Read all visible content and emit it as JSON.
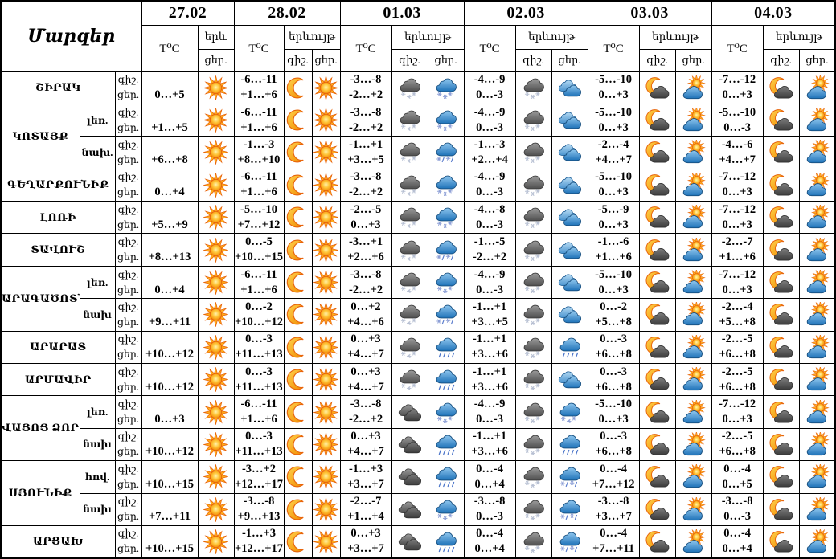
{
  "title": "Մարզեր",
  "labels": {
    "temp": "T⁰C",
    "phenomenon": "երևույթ",
    "phenomenon_short": "երև",
    "night": "գիշ.",
    "day": "ցեր."
  },
  "dates": [
    "27.02",
    "28.02",
    "01.03",
    "02.03",
    "03.03",
    "04.03"
  ],
  "icons": {
    "sun": "clear sunny day",
    "moon": "clear night",
    "dark-cloud": "overcast dark clouds",
    "dark-cloud-snow": "dark cloud with snowfall",
    "blue-cloud": "cloudy",
    "blue-cloud-snow": "cloud with snowfall",
    "blue-cloud-sleet": "cloud with sleet (snow and rain)",
    "blue-cloud-rain": "cloud with rain",
    "moon-cloud": "partly cloudy night",
    "sun-cloud": "partly cloudy day"
  },
  "colors": {
    "border": "#000000",
    "background": "#ffffff",
    "sun_orange": "#F59C18",
    "sun_outline": "#E8650C",
    "cloud_dark": "#5E5E5E",
    "cloud_blue": "#2E7FC0"
  },
  "regions": [
    {
      "name": "ՇԻՐԱԿ",
      "zones": [
        {
          "label": "",
          "cells": [
            {
              "tn": "",
              "td": "0…+5",
              "wn": "",
              "wd": "sun"
            },
            {
              "tn": "-6…-11",
              "td": "+1…+6",
              "wn": "moon",
              "wd": "sun"
            },
            {
              "tn": "-3…-8",
              "td": "-2…+2",
              "wn": "dark-cloud-snow",
              "wd": "blue-cloud-snow"
            },
            {
              "tn": "-4…-9",
              "td": "0…-3",
              "wn": "dark-cloud-snow",
              "wd": "blue-cloud"
            },
            {
              "tn": "-5…-10",
              "td": "0…+3",
              "wn": "moon-cloud",
              "wd": "sun-cloud"
            },
            {
              "tn": "-7…-12",
              "td": "0…+3",
              "wn": "moon-cloud",
              "wd": "sun-cloud"
            }
          ]
        }
      ]
    },
    {
      "name": "ԿՈՏԱՅՔ",
      "zones": [
        {
          "label": "լեռ.",
          "cells": [
            {
              "tn": "",
              "td": "+1…+5",
              "wn": "",
              "wd": "sun"
            },
            {
              "tn": "-6…-11",
              "td": "+1…+6",
              "wn": "moon",
              "wd": "sun"
            },
            {
              "tn": "-3…-8",
              "td": "-2…+2",
              "wn": "dark-cloud-snow",
              "wd": "blue-cloud-snow"
            },
            {
              "tn": "-4…-9",
              "td": "0…-3",
              "wn": "dark-cloud-snow",
              "wd": "blue-cloud"
            },
            {
              "tn": "-5…-10",
              "td": "0…+3",
              "wn": "moon-cloud",
              "wd": "sun-cloud"
            },
            {
              "tn": "-5…-10",
              "td": "0…-3",
              "wn": "moon-cloud",
              "wd": "sun-cloud"
            }
          ]
        },
        {
          "label": "նախ.",
          "cells": [
            {
              "tn": "",
              "td": "+6…+8",
              "wn": "",
              "wd": "sun"
            },
            {
              "tn": "-1…-3",
              "td": "+8…+10",
              "wn": "moon",
              "wd": "sun"
            },
            {
              "tn": "-1…+1",
              "td": "+3…+5",
              "wn": "dark-cloud-snow",
              "wd": "blue-cloud-sleet"
            },
            {
              "tn": "-1…-3",
              "td": "+2…+4",
              "wn": "dark-cloud-snow",
              "wd": "blue-cloud"
            },
            {
              "tn": "-2…-4",
              "td": "+4…+7",
              "wn": "moon-cloud",
              "wd": "sun-cloud"
            },
            {
              "tn": "-4…-6",
              "td": "+4…+7",
              "wn": "moon-cloud",
              "wd": "sun-cloud"
            }
          ]
        }
      ]
    },
    {
      "name": "ԳԵՂԱՐՔՈՒՆԻՔ",
      "zones": [
        {
          "label": "",
          "cells": [
            {
              "tn": "",
              "td": "0…+4",
              "wn": "",
              "wd": "sun"
            },
            {
              "tn": "-6…-11",
              "td": "+1…+6",
              "wn": "moon",
              "wd": "sun"
            },
            {
              "tn": "-3…-8",
              "td": "-2…+2",
              "wn": "dark-cloud-snow",
              "wd": "blue-cloud-snow"
            },
            {
              "tn": "-4…-9",
              "td": "0…-3",
              "wn": "dark-cloud-snow",
              "wd": "blue-cloud"
            },
            {
              "tn": "-5…-10",
              "td": "0…+3",
              "wn": "moon-cloud",
              "wd": "sun-cloud"
            },
            {
              "tn": "-7…-12",
              "td": "0…+3",
              "wn": "moon-cloud",
              "wd": "sun-cloud"
            }
          ]
        }
      ]
    },
    {
      "name": "ԼՈՌԻ",
      "zones": [
        {
          "label": "",
          "cells": [
            {
              "tn": "",
              "td": "+5…+9",
              "wn": "",
              "wd": "sun"
            },
            {
              "tn": "-5…-10",
              "td": "+7…+12",
              "wn": "moon",
              "wd": "sun"
            },
            {
              "tn": "-2…-5",
              "td": "0…+3",
              "wn": "dark-cloud-snow",
              "wd": "blue-cloud-snow"
            },
            {
              "tn": "-4…-8",
              "td": "0…-3",
              "wn": "dark-cloud-snow",
              "wd": "blue-cloud"
            },
            {
              "tn": "-5…-9",
              "td": "0…+3",
              "wn": "moon-cloud",
              "wd": "sun-cloud"
            },
            {
              "tn": "-7…-12",
              "td": "0…+3",
              "wn": "moon-cloud",
              "wd": "sun-cloud"
            }
          ]
        }
      ]
    },
    {
      "name": "ՏԱՎՈՒՇ",
      "zones": [
        {
          "label": "",
          "cells": [
            {
              "tn": "",
              "td": "+8…+13",
              "wn": "",
              "wd": "sun"
            },
            {
              "tn": "0…-5",
              "td": "+10…+15",
              "wn": "moon",
              "wd": "sun"
            },
            {
              "tn": "-3…+1",
              "td": "+2…+6",
              "wn": "dark-cloud-snow",
              "wd": "blue-cloud-sleet"
            },
            {
              "tn": "-1…-5",
              "td": "-2…+2",
              "wn": "dark-cloud-snow",
              "wd": "blue-cloud"
            },
            {
              "tn": "-1…-6",
              "td": "+1…+6",
              "wn": "moon-cloud",
              "wd": "sun-cloud"
            },
            {
              "tn": "-2…-7",
              "td": "+1…+6",
              "wn": "moon-cloud",
              "wd": "sun-cloud"
            }
          ]
        }
      ]
    },
    {
      "name": "ԱՐԱԳԱԾՈՏՆ",
      "zones": [
        {
          "label": "լեռ.",
          "cells": [
            {
              "tn": "",
              "td": "0…+4",
              "wn": "",
              "wd": "sun"
            },
            {
              "tn": "-6…-11",
              "td": "+1…+6",
              "wn": "moon",
              "wd": "sun"
            },
            {
              "tn": "-3…-8",
              "td": "-2…+2",
              "wn": "dark-cloud-snow",
              "wd": "blue-cloud-snow"
            },
            {
              "tn": "-4…-9",
              "td": "0…-3",
              "wn": "dark-cloud-snow",
              "wd": "blue-cloud"
            },
            {
              "tn": "-5…-10",
              "td": "0…+3",
              "wn": "moon-cloud",
              "wd": "sun-cloud"
            },
            {
              "tn": "-7…-12",
              "td": "0…+3",
              "wn": "moon-cloud",
              "wd": "sun-cloud"
            }
          ]
        },
        {
          "label": "նախ",
          "cells": [
            {
              "tn": "",
              "td": "+9…+11",
              "wn": "",
              "wd": "sun"
            },
            {
              "tn": "0…-2",
              "td": "+10…+12",
              "wn": "moon",
              "wd": "sun"
            },
            {
              "tn": "0…+2",
              "td": "+4…+6",
              "wn": "dark-cloud-snow",
              "wd": "blue-cloud-sleet"
            },
            {
              "tn": "-1…+1",
              "td": "+3…+5",
              "wn": "dark-cloud-snow",
              "wd": "blue-cloud"
            },
            {
              "tn": "0…-2",
              "td": "+5…+8",
              "wn": "moon-cloud",
              "wd": "sun-cloud"
            },
            {
              "tn": "-2…-4",
              "td": "+5…+8",
              "wn": "moon-cloud",
              "wd": "sun-cloud"
            }
          ]
        }
      ]
    },
    {
      "name": "ԱՐԱՐԱՏ",
      "zones": [
        {
          "label": "",
          "cells": [
            {
              "tn": "",
              "td": "+10…+12",
              "wn": "",
              "wd": "sun"
            },
            {
              "tn": "0…-3",
              "td": "+11…+13",
              "wn": "moon",
              "wd": "sun"
            },
            {
              "tn": "0…+3",
              "td": "+4…+7",
              "wn": "dark-cloud-snow",
              "wd": "blue-cloud-rain"
            },
            {
              "tn": "-1…+1",
              "td": "+3…+6",
              "wn": "dark-cloud-snow",
              "wd": "blue-cloud-rain"
            },
            {
              "tn": "0…-3",
              "td": "+6…+8",
              "wn": "moon-cloud",
              "wd": "sun-cloud"
            },
            {
              "tn": "-2…-5",
              "td": "+6…+8",
              "wn": "moon-cloud",
              "wd": "sun-cloud"
            }
          ]
        }
      ]
    },
    {
      "name": "ԱՐՄԱՎԻՐ",
      "zones": [
        {
          "label": "",
          "cells": [
            {
              "tn": "",
              "td": "+10…+12",
              "wn": "",
              "wd": "sun"
            },
            {
              "tn": "0…-3",
              "td": "+11…+13",
              "wn": "moon",
              "wd": "sun"
            },
            {
              "tn": "0…+3",
              "td": "+4…+7",
              "wn": "dark-cloud-snow",
              "wd": "blue-cloud-rain"
            },
            {
              "tn": "-1…+1",
              "td": "+3…+6",
              "wn": "dark-cloud-snow",
              "wd": "blue-cloud"
            },
            {
              "tn": "0…-3",
              "td": "+6…+8",
              "wn": "moon-cloud",
              "wd": "sun-cloud"
            },
            {
              "tn": "-2…-5",
              "td": "+6…+8",
              "wn": "moon-cloud",
              "wd": "sun-cloud"
            }
          ]
        }
      ]
    },
    {
      "name": "ՎԱՅՈՑ ՁՈՐ",
      "zones": [
        {
          "label": "լեռ.",
          "cells": [
            {
              "tn": "",
              "td": "0…+3",
              "wn": "",
              "wd": "sun"
            },
            {
              "tn": "-6…-11",
              "td": "+1…+6",
              "wn": "moon",
              "wd": "sun"
            },
            {
              "tn": "-3…-8",
              "td": "-2…+2",
              "wn": "dark-cloud",
              "wd": "blue-cloud-snow"
            },
            {
              "tn": "-4…-9",
              "td": "0…-3",
              "wn": "dark-cloud-snow",
              "wd": "blue-cloud-snow"
            },
            {
              "tn": "-5…-10",
              "td": "0…+3",
              "wn": "moon-cloud",
              "wd": "sun-cloud"
            },
            {
              "tn": "-7…-12",
              "td": "0…+3",
              "wn": "moon-cloud",
              "wd": "sun-cloud"
            }
          ]
        },
        {
          "label": "նախ",
          "cells": [
            {
              "tn": "",
              "td": "+10…+12",
              "wn": "",
              "wd": "sun"
            },
            {
              "tn": "0…-3",
              "td": "+11…+13",
              "wn": "moon",
              "wd": "sun"
            },
            {
              "tn": "0…+3",
              "td": "+4…+7",
              "wn": "dark-cloud",
              "wd": "blue-cloud-rain"
            },
            {
              "tn": "-1…+1",
              "td": "+3…+6",
              "wn": "dark-cloud-snow",
              "wd": "blue-cloud-rain"
            },
            {
              "tn": "0…-3",
              "td": "+6…+8",
              "wn": "moon-cloud",
              "wd": "sun-cloud"
            },
            {
              "tn": "-2…-5",
              "td": "+6…+8",
              "wn": "moon-cloud",
              "wd": "sun-cloud"
            }
          ]
        }
      ]
    },
    {
      "name": "ՍՅՈՒՆԻՔ",
      "zones": [
        {
          "label": "հով.",
          "cells": [
            {
              "tn": "",
              "td": "+10…+15",
              "wn": "",
              "wd": "sun"
            },
            {
              "tn": "-3…+2",
              "td": "+12…+17",
              "wn": "moon",
              "wd": "sun"
            },
            {
              "tn": "-1…+3",
              "td": "+3…+7",
              "wn": "dark-cloud",
              "wd": "blue-cloud-rain"
            },
            {
              "tn": "0…-4",
              "td": "0…+4",
              "wn": "dark-cloud-snow",
              "wd": "blue-cloud-sleet"
            },
            {
              "tn": "0…-4",
              "td": "+7…+12",
              "wn": "moon-cloud",
              "wd": "sun-cloud"
            },
            {
              "tn": "0…-4",
              "td": "0…+5",
              "wn": "moon-cloud",
              "wd": "sun-cloud"
            }
          ]
        },
        {
          "label": "նախ",
          "cells": [
            {
              "tn": "",
              "td": "+7…+11",
              "wn": "",
              "wd": "sun"
            },
            {
              "tn": "-3…-8",
              "td": "+9…+13",
              "wn": "moon",
              "wd": "sun"
            },
            {
              "tn": "-2…-7",
              "td": "+1…+4",
              "wn": "dark-cloud",
              "wd": "blue-cloud-snow"
            },
            {
              "tn": "-3…-8",
              "td": "0…-3",
              "wn": "dark-cloud-snow",
              "wd": "blue-cloud-sleet"
            },
            {
              "tn": "-3…-8",
              "td": "+3…+7",
              "wn": "moon-cloud",
              "wd": "sun-cloud"
            },
            {
              "tn": "-3…-8",
              "td": "0…-3",
              "wn": "moon-cloud",
              "wd": "sun-cloud"
            }
          ]
        }
      ]
    },
    {
      "name": "ԱՐՑԱԽ",
      "zones": [
        {
          "label": "",
          "cells": [
            {
              "tn": "",
              "td": "+10…+15",
              "wn": "",
              "wd": "sun"
            },
            {
              "tn": "-1…+3",
              "td": "+12…+17",
              "wn": "moon",
              "wd": "sun"
            },
            {
              "tn": "0…+3",
              "td": "+3…+7",
              "wn": "dark-cloud",
              "wd": "blue-cloud-rain"
            },
            {
              "tn": "0…-4",
              "td": "0…+4",
              "wn": "dark-cloud-snow",
              "wd": "blue-cloud-sleet"
            },
            {
              "tn": "0…-4",
              "td": "+7…+11",
              "wn": "moon-cloud",
              "wd": "sun-cloud"
            },
            {
              "tn": "0…-4",
              "td": "0…+4",
              "wn": "moon-cloud",
              "wd": "sun-cloud"
            }
          ]
        }
      ]
    }
  ]
}
